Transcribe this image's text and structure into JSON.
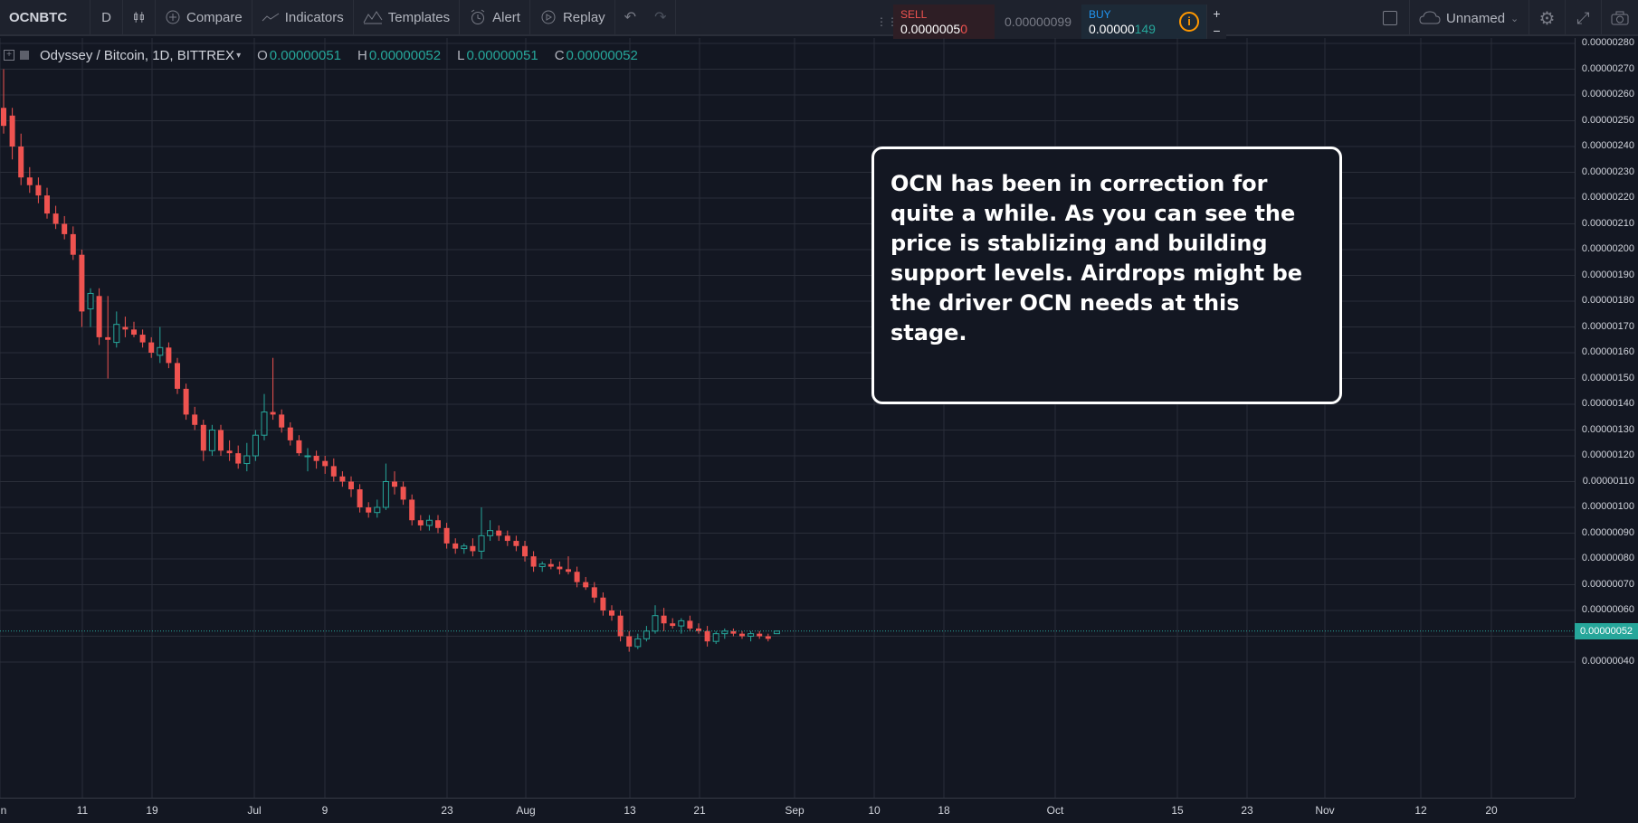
{
  "toolbar": {
    "symbol": "OCNBTC",
    "interval": "D",
    "compare": "Compare",
    "indicators": "Indicators",
    "templates": "Templates",
    "alert": "Alert",
    "replay": "Replay",
    "layout_name": "Unnamed"
  },
  "trade_panel": {
    "sell_label": "SELL",
    "sell_value_main": "0.0000005",
    "sell_value_hl": "0",
    "spread": "0.00000099",
    "buy_label": "BUY",
    "buy_value_main": "0.00000",
    "buy_value_hl": "149",
    "info": "i",
    "plus": "+",
    "minus": "−"
  },
  "legend": {
    "symbol_desc": "Odyssey / Bitcoin, 1D, BITTREX",
    "o_label": "O",
    "o_value": "0.00000051",
    "h_label": "H",
    "h_value": "0.00000052",
    "l_label": "L",
    "l_value": "0.00000051",
    "c_label": "C",
    "c_value": "0.00000052"
  },
  "annotation": {
    "text": "OCN has been in correction for quite a while. As you can see the price is stablizing and building support levels. Airdrops might be the driver OCN needs at this stage."
  },
  "last_price": "0.00000052",
  "colors": {
    "background": "#131722",
    "up": "#26a69a",
    "down": "#ef5350",
    "grid": "#2a2e39"
  },
  "chart_data": {
    "type": "candlestick",
    "symbol": "OCNBTC",
    "exchange": "BITTREX",
    "interval": "1D",
    "y_ticks": [
      "0.00000280",
      "0.00000270",
      "0.00000260",
      "0.00000250",
      "0.00000240",
      "0.00000230",
      "0.00000220",
      "0.00000210",
      "0.00000200",
      "0.00000190",
      "0.00000180",
      "0.00000170",
      "0.00000160",
      "0.00000150",
      "0.00000140",
      "0.00000130",
      "0.00000120",
      "0.00000110",
      "0.00000100",
      "0.00000090",
      "0.00000080",
      "0.00000070",
      "0.00000060",
      "0.00000050",
      "0.00000040"
    ],
    "ylim": [
      3.6e-07,
      2.82e-06
    ],
    "x_ticks": [
      "n",
      "11",
      "19",
      "Jul",
      "9",
      "23",
      "Aug",
      "13",
      "21",
      "Sep",
      "10",
      "18",
      "Oct",
      "15",
      "23",
      "Nov",
      "12",
      "20"
    ],
    "candles": [
      [
        2.55e-06,
        2.7e-06,
        2.45e-06,
        2.48e-06
      ],
      [
        2.52e-06,
        2.55e-06,
        2.35e-06,
        2.4e-06
      ],
      [
        2.4e-06,
        2.45e-06,
        2.25e-06,
        2.28e-06
      ],
      [
        2.28e-06,
        2.32e-06,
        2.22e-06,
        2.25e-06
      ],
      [
        2.25e-06,
        2.28e-06,
        2.18e-06,
        2.21e-06
      ],
      [
        2.21e-06,
        2.24e-06,
        2.12e-06,
        2.14e-06
      ],
      [
        2.14e-06,
        2.17e-06,
        2.08e-06,
        2.1e-06
      ],
      [
        2.1e-06,
        2.13e-06,
        2.04e-06,
        2.06e-06
      ],
      [
        2.06e-06,
        2.09e-06,
        1.96e-06,
        1.98e-06
      ],
      [
        1.98e-06,
        2e-06,
        1.7e-06,
        1.76e-06
      ],
      [
        1.77e-06,
        1.85e-06,
        1.7e-06,
        1.83e-06
      ],
      [
        1.82e-06,
        1.85e-06,
        1.63e-06,
        1.66e-06
      ],
      [
        1.66e-06,
        1.82e-06,
        1.5e-06,
        1.65e-06
      ],
      [
        1.64e-06,
        1.76e-06,
        1.62e-06,
        1.71e-06
      ],
      [
        1.7e-06,
        1.74e-06,
        1.66e-06,
        1.69e-06
      ],
      [
        1.69e-06,
        1.72e-06,
        1.66e-06,
        1.67e-06
      ],
      [
        1.67e-06,
        1.69e-06,
        1.62e-06,
        1.64e-06
      ],
      [
        1.64e-06,
        1.66e-06,
        1.58e-06,
        1.6e-06
      ],
      [
        1.59e-06,
        1.7e-06,
        1.56e-06,
        1.62e-06
      ],
      [
        1.62e-06,
        1.64e-06,
        1.54e-06,
        1.56e-06
      ],
      [
        1.56e-06,
        1.58e-06,
        1.44e-06,
        1.46e-06
      ],
      [
        1.46e-06,
        1.48e-06,
        1.34e-06,
        1.36e-06
      ],
      [
        1.36e-06,
        1.39e-06,
        1.3e-06,
        1.32e-06
      ],
      [
        1.32e-06,
        1.34e-06,
        1.18e-06,
        1.22e-06
      ],
      [
        1.22e-06,
        1.32e-06,
        1.2e-06,
        1.3e-06
      ],
      [
        1.3e-06,
        1.32e-06,
        1.2e-06,
        1.22e-06
      ],
      [
        1.22e-06,
        1.26e-06,
        1.18e-06,
        1.21e-06
      ],
      [
        1.21e-06,
        1.24e-06,
        1.15e-06,
        1.17e-06
      ],
      [
        1.17e-06,
        1.25e-06,
        1.14e-06,
        1.2e-06
      ],
      [
        1.2e-06,
        1.3e-06,
        1.18e-06,
        1.28e-06
      ],
      [
        1.28e-06,
        1.44e-06,
        1.26e-06,
        1.37e-06
      ],
      [
        1.37e-06,
        1.58e-06,
        1.34e-06,
        1.36e-06
      ],
      [
        1.36e-06,
        1.38e-06,
        1.29e-06,
        1.31e-06
      ],
      [
        1.31e-06,
        1.33e-06,
        1.24e-06,
        1.26e-06
      ],
      [
        1.26e-06,
        1.28e-06,
        1.2e-06,
        1.21e-06
      ],
      [
        1.2e-06,
        1.23e-06,
        1.14e-06,
        1.2e-06
      ],
      [
        1.2e-06,
        1.22e-06,
        1.15e-06,
        1.18e-06
      ],
      [
        1.18e-06,
        1.2e-06,
        1.13e-06,
        1.16e-06
      ],
      [
        1.16e-06,
        1.19e-06,
        1.1e-06,
        1.12e-06
      ],
      [
        1.12e-06,
        1.14e-06,
        1.08e-06,
        1.1e-06
      ],
      [
        1.1e-06,
        1.12e-06,
        1.04e-06,
        1.07e-06
      ],
      [
        1.07e-06,
        1.09e-06,
        9.8e-07,
        1e-06
      ],
      [
        1e-06,
        1.02e-06,
        9.6e-07,
        9.8e-07
      ],
      [
        9.8e-07,
        1.03e-06,
        9.6e-07,
        1e-06
      ],
      [
        1e-06,
        1.17e-06,
        9.9e-07,
        1.1e-06
      ],
      [
        1.1e-06,
        1.14e-06,
        1.05e-06,
        1.08e-06
      ],
      [
        1.08e-06,
        1.1e-06,
        1.01e-06,
        1.03e-06
      ],
      [
        1.03e-06,
        1.05e-06,
        9.3e-07,
        9.5e-07
      ],
      [
        9.5e-07,
        9.7e-07,
        9.1e-07,
        9.3e-07
      ],
      [
        9.3e-07,
        9.7e-07,
        9.1e-07,
        9.5e-07
      ],
      [
        9.5e-07,
        9.7e-07,
        9e-07,
        9.2e-07
      ],
      [
        9.2e-07,
        9.4e-07,
        8.4e-07,
        8.6e-07
      ],
      [
        8.6e-07,
        8.8e-07,
        8.2e-07,
        8.4e-07
      ],
      [
        8.4e-07,
        8.6e-07,
        8.2e-07,
        8.5e-07
      ],
      [
        8.5e-07,
        8.8e-07,
        8.1e-07,
        8.3e-07
      ],
      [
        8.3e-07,
        1e-06,
        8e-07,
        8.9e-07
      ],
      [
        8.9e-07,
        9.5e-07,
        8.7e-07,
        9.1e-07
      ],
      [
        9.1e-07,
        9.3e-07,
        8.7e-07,
        8.9e-07
      ],
      [
        8.9e-07,
        9.1e-07,
        8.5e-07,
        8.7e-07
      ],
      [
        8.7e-07,
        8.9e-07,
        8.3e-07,
        8.5e-07
      ],
      [
        8.5e-07,
        8.7e-07,
        7.9e-07,
        8.1e-07
      ],
      [
        8.1e-07,
        8.3e-07,
        7.5e-07,
        7.7e-07
      ],
      [
        7.7e-07,
        7.9e-07,
        7.5e-07,
        7.8e-07
      ],
      [
        7.8e-07,
        8e-07,
        7.6e-07,
        7.7e-07
      ],
      [
        7.7e-07,
        7.9e-07,
        7.4e-07,
        7.6e-07
      ],
      [
        7.6e-07,
        8.1e-07,
        7.4e-07,
        7.5e-07
      ],
      [
        7.5e-07,
        7.7e-07,
        6.9e-07,
        7.1e-07
      ],
      [
        7.1e-07,
        7.3e-07,
        6.8e-07,
        6.9e-07
      ],
      [
        6.9e-07,
        7.1e-07,
        6.3e-07,
        6.5e-07
      ],
      [
        6.5e-07,
        6.7e-07,
        5.8e-07,
        6e-07
      ],
      [
        6e-07,
        6.2e-07,
        5.6e-07,
        5.8e-07
      ],
      [
        5.8e-07,
        6e-07,
        4.8e-07,
        5e-07
      ],
      [
        5e-07,
        5.2e-07,
        4.4e-07,
        4.6e-07
      ],
      [
        4.6e-07,
        5.1e-07,
        4.5e-07,
        4.9e-07
      ],
      [
        4.9e-07,
        5.4e-07,
        4.8e-07,
        5.2e-07
      ],
      [
        5.2e-07,
        6.2e-07,
        5.1e-07,
        5.8e-07
      ],
      [
        5.8e-07,
        6.1e-07,
        5.2e-07,
        5.5e-07
      ],
      [
        5.5e-07,
        5.7e-07,
        5.3e-07,
        5.4e-07
      ],
      [
        5.4e-07,
        5.7e-07,
        5.1e-07,
        5.6e-07
      ],
      [
        5.6e-07,
        5.8e-07,
        5.2e-07,
        5.3e-07
      ],
      [
        5.3e-07,
        5.5e-07,
        5.1e-07,
        5.2e-07
      ],
      [
        5.2e-07,
        5.4e-07,
        4.6e-07,
        4.8e-07
      ],
      [
        4.8e-07,
        5.2e-07,
        4.7e-07,
        5.1e-07
      ],
      [
        5.1e-07,
        5.3e-07,
        4.9e-07,
        5.2e-07
      ],
      [
        5.2e-07,
        5.3e-07,
        5e-07,
        5.1e-07
      ],
      [
        5.1e-07,
        5.2e-07,
        4.9e-07,
        5e-07
      ],
      [
        5e-07,
        5.2e-07,
        4.8e-07,
        5.1e-07
      ],
      [
        5.1e-07,
        5.2e-07,
        4.9e-07,
        5e-07
      ],
      [
        5e-07,
        5.1e-07,
        4.8e-07,
        4.9e-07
      ],
      [
        5.1e-07,
        5.2e-07,
        5.1e-07,
        5.2e-07
      ]
    ]
  }
}
